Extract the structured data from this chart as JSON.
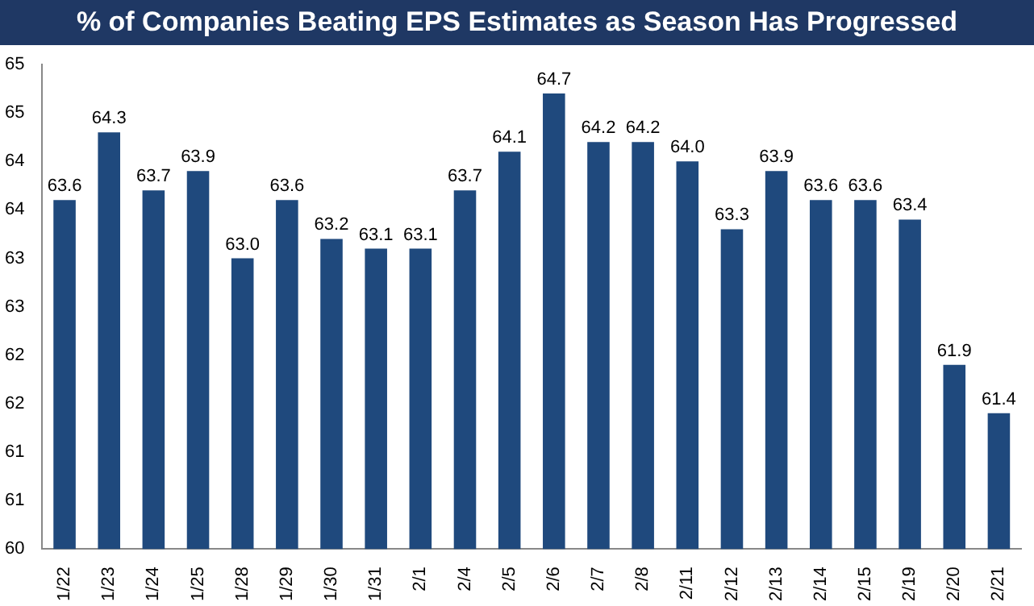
{
  "chart_data": {
    "type": "bar",
    "title": "% of Companies Beating EPS Estimates as Season Has Progressed",
    "categories": [
      "1/22",
      "1/23",
      "1/24",
      "1/25",
      "1/28",
      "1/29",
      "1/30",
      "1/31",
      "2/1",
      "2/4",
      "2/5",
      "2/6",
      "2/7",
      "2/8",
      "2/11",
      "2/12",
      "2/13",
      "2/14",
      "2/15",
      "2/19",
      "2/20",
      "2/21"
    ],
    "values": [
      63.6,
      64.3,
      63.7,
      63.9,
      63.0,
      63.6,
      63.2,
      63.1,
      63.1,
      63.7,
      64.1,
      64.7,
      64.2,
      64.2,
      64.0,
      63.3,
      63.9,
      63.6,
      63.6,
      63.4,
      61.9,
      61.4
    ],
    "value_labels": [
      "63.6",
      "64.3",
      "63.7",
      "63.9",
      "63.0",
      "63.6",
      "63.2",
      "63.1",
      "63.1",
      "63.7",
      "64.1",
      "64.7",
      "64.2",
      "64.2",
      "64.0",
      "63.3",
      "63.9",
      "63.6",
      "63.6",
      "63.4",
      "61.9",
      "61.4"
    ],
    "color": "#1f497d",
    "ylim": [
      60,
      65
    ],
    "yticks": [
      60,
      {
        "value": 60.5,
        "label": "61"
      },
      61,
      {
        "value": 61.5,
        "label": "62"
      },
      62,
      {
        "value": 62.5,
        "label": "63"
      },
      63,
      {
        "value": 63.5,
        "label": "64"
      },
      64,
      {
        "value": 64.5,
        "label": "65"
      },
      65
    ],
    "grid": false,
    "legend": false
  }
}
